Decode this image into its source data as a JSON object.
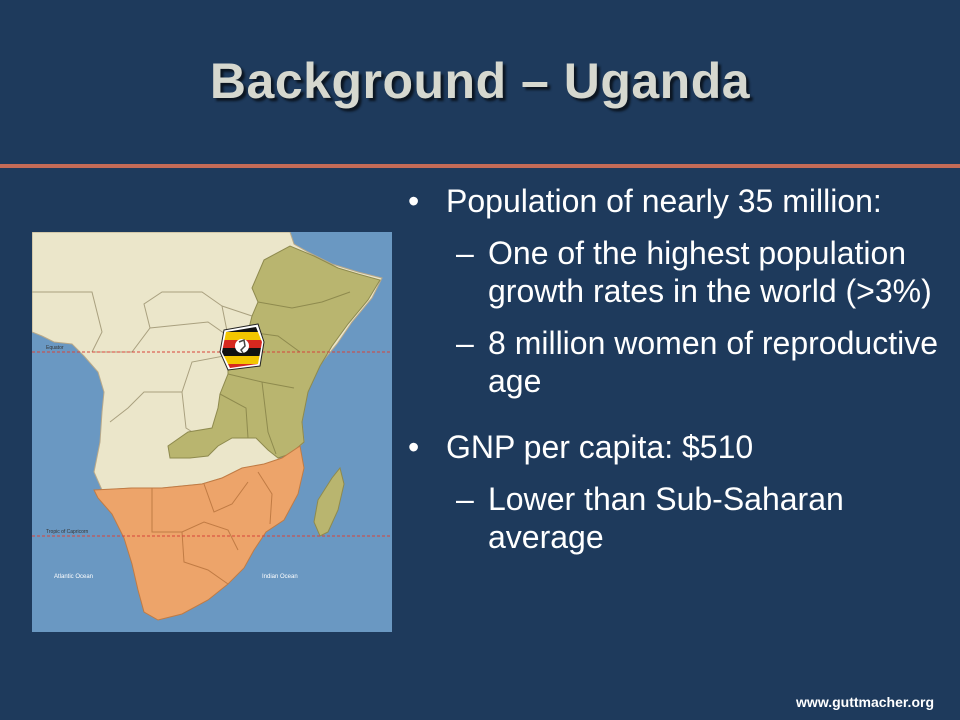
{
  "slide": {
    "title": "Background – Uganda",
    "bullets": [
      {
        "text": "Population of nearly 35 million:",
        "sub": [
          "One of the highest population growth rates in the world (>3%)",
          "8 million women of reproductive age"
        ]
      },
      {
        "text": "GNP per capita: $510",
        "sub": [
          "Lower than Sub-Saharan average"
        ]
      }
    ],
    "bullet_symbol": "•",
    "dash_symbol": "–",
    "footer": "www.guttmacher.org"
  },
  "map": {
    "equator_label": "Equator",
    "tropic_label": "Tropic of Capricorn",
    "atlantic_label": "Atlantic Ocean",
    "indian_label": "Indian Ocean",
    "colors": {
      "ocean": "#6a98c2",
      "land": "#ebe6ca",
      "east_africa": "#b9b56f",
      "southern_africa": "#eda46a",
      "lines": "#d8443b"
    }
  }
}
